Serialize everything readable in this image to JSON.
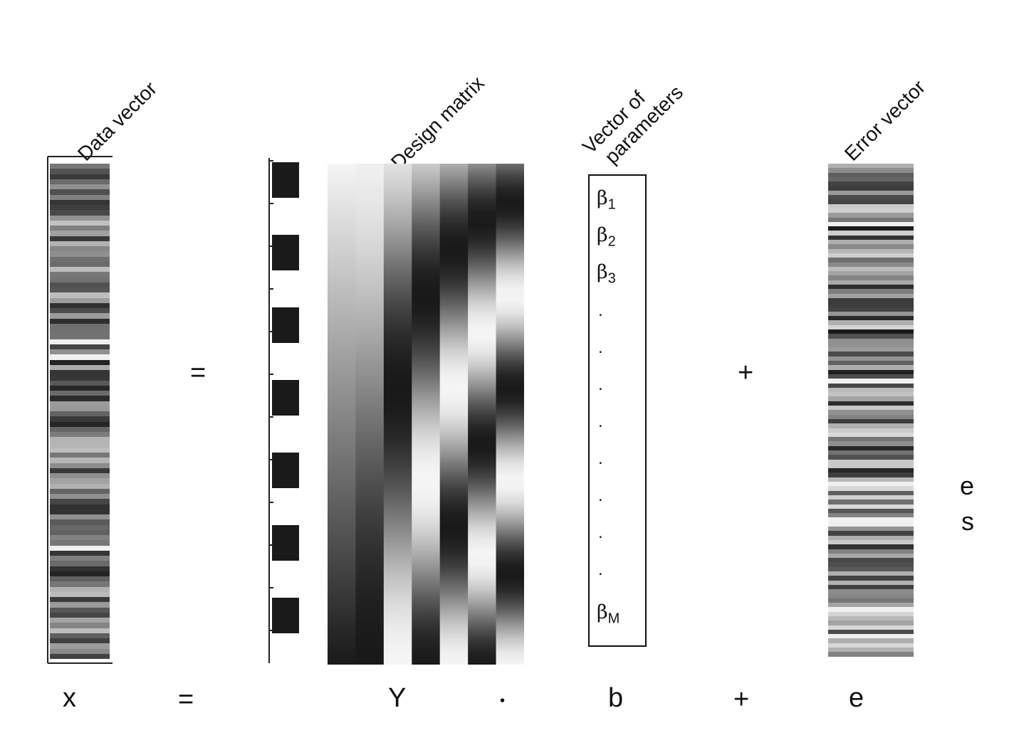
{
  "labels": {
    "data_vector": "Data vector",
    "design_matrix": "Design matrix",
    "vector_of_parameters_line1": "Vector of",
    "vector_of_parameters_line2": "parameters",
    "error_vector": "Error vector"
  },
  "operators": {
    "equals": "=",
    "plus": "+"
  },
  "bottom_equation": {
    "x": "x",
    "equals": "=",
    "Y": "Y",
    "dot": "•",
    "b": "b",
    "plus": "+",
    "e": "e"
  },
  "parameters": {
    "beta1_sym": "β",
    "beta1_sub": "1",
    "beta2_sym": "β",
    "beta2_sub": "2",
    "beta3_sym": "β",
    "beta3_sub": "3",
    "ellipsis_dot": ".",
    "betaM_sym": "β",
    "betaM_sub": "M"
  },
  "side_text": {
    "e": "e",
    "s": "s"
  },
  "colors": {
    "text": "#111111",
    "background": "#ffffff",
    "dark": "#1a1a1a"
  }
}
